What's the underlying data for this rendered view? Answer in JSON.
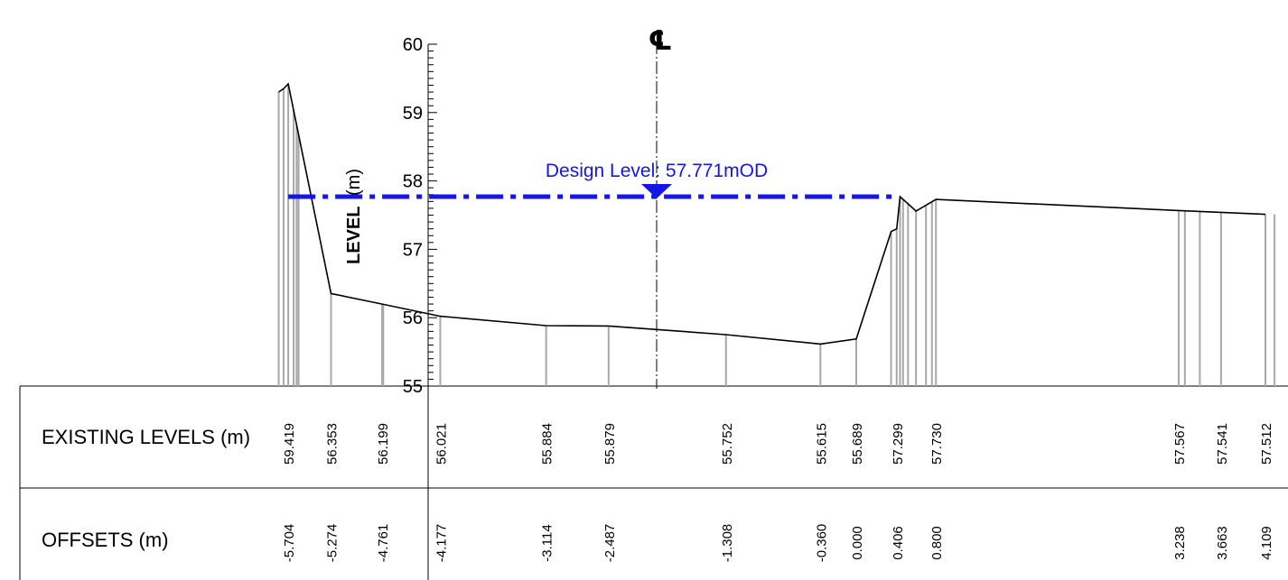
{
  "y_axis": {
    "title_bold": "LEVEL",
    "title_unit": "(m)",
    "ticks": [
      "55",
      "56",
      "57",
      "58",
      "59",
      "60"
    ],
    "min": 55,
    "max": 60
  },
  "centerline": {
    "symbol": "℄"
  },
  "design_level": {
    "label": "Design Level: 57.771mOD",
    "value": 57.771,
    "offset_from": -5.704,
    "offset_to": 0.406,
    "color": "#1515e6"
  },
  "bands": {
    "existing_levels_title": "EXISTING LEVELS (m)",
    "offsets_title": "OFFSETS (m)"
  },
  "chart_data": {
    "type": "line",
    "xlabel": "OFFSETS (m)",
    "ylabel": "LEVEL (m)",
    "ylim": [
      55,
      60
    ],
    "profile_points": [
      {
        "x": -5.8,
        "y": 59.3
      },
      {
        "x": -5.75,
        "y": 59.35
      },
      {
        "x": -5.704,
        "y": 59.419
      },
      {
        "x": -5.274,
        "y": 56.353
      },
      {
        "x": -4.761,
        "y": 56.199
      },
      {
        "x": -4.177,
        "y": 56.021
      },
      {
        "x": -3.114,
        "y": 55.884
      },
      {
        "x": -2.487,
        "y": 55.879
      },
      {
        "x": -1.308,
        "y": 55.752
      },
      {
        "x": -0.36,
        "y": 55.615
      },
      {
        "x": 0.0,
        "y": 55.689
      },
      {
        "x": 0.35,
        "y": 57.26
      },
      {
        "x": 0.406,
        "y": 57.299
      },
      {
        "x": 0.44,
        "y": 57.77
      },
      {
        "x": 0.6,
        "y": 57.56
      },
      {
        "x": 0.8,
        "y": 57.73
      },
      {
        "x": 3.238,
        "y": 57.567
      },
      {
        "x": 3.663,
        "y": 57.541
      },
      {
        "x": 4.109,
        "y": 57.512
      }
    ],
    "extra_stations": [
      -5.65,
      -5.62,
      -5.6,
      -4.75,
      0.47,
      0.52,
      0.7,
      0.76,
      3.3,
      3.45,
      4.2
    ],
    "labelled_stations": [
      {
        "offset": "-5.704",
        "level": "59.419",
        "x": -5.704,
        "y": 59.419
      },
      {
        "offset": "-5.274",
        "level": "56.353",
        "x": -5.274,
        "y": 56.353
      },
      {
        "offset": "-4.761",
        "level": "56.199",
        "x": -4.761,
        "y": 56.199
      },
      {
        "offset": "-4.177",
        "level": "56.021",
        "x": -4.177,
        "y": 56.021
      },
      {
        "offset": "-3.114",
        "level": "55.884",
        "x": -3.114,
        "y": 55.884
      },
      {
        "offset": "-2.487",
        "level": "55.879",
        "x": -2.487,
        "y": 55.879
      },
      {
        "offset": "-1.308",
        "level": "55.752",
        "x": -1.308,
        "y": 55.752
      },
      {
        "offset": "-0.360",
        "level": "55.615",
        "x": -0.36,
        "y": 55.615
      },
      {
        "offset": "0.000",
        "level": "55.689",
        "x": 0.0,
        "y": 55.689
      },
      {
        "offset": "0.406",
        "level": "57.299",
        "x": 0.406,
        "y": 57.299
      },
      {
        "offset": "0.800",
        "level": "57.730",
        "x": 0.8,
        "y": 57.73
      },
      {
        "offset": "3.238",
        "level": "57.567",
        "x": 3.238,
        "y": 57.567
      },
      {
        "offset": "3.663",
        "level": "57.541",
        "x": 3.663,
        "y": 57.541
      },
      {
        "offset": "4.109",
        "level": "57.512",
        "x": 4.109,
        "y": 57.512
      }
    ]
  }
}
